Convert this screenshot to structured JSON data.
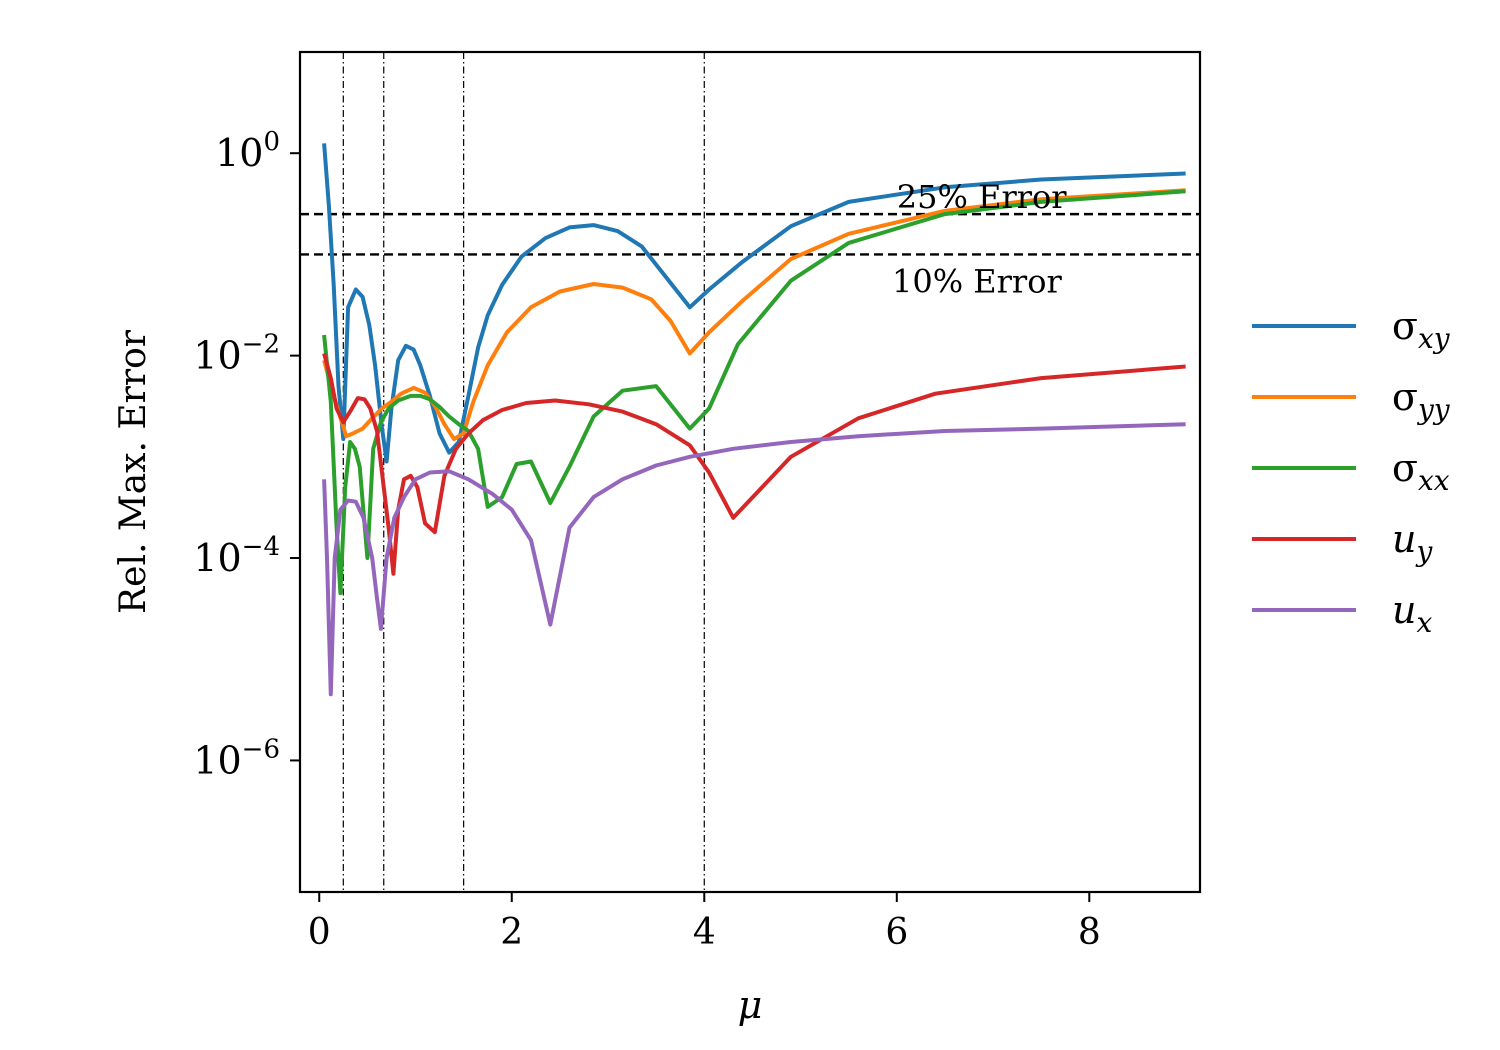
{
  "chart_data": {
    "type": "line",
    "xlabel": "μ",
    "ylabel": "Rel. Max. Error",
    "xlim": [
      -0.2,
      9.15
    ],
    "ylim_log10": [
      -7.3,
      1.0
    ],
    "y_scale": "log",
    "xticks": [
      {
        "value": 0,
        "label": "0"
      },
      {
        "value": 2,
        "label": "2"
      },
      {
        "value": 4,
        "label": "4"
      },
      {
        "value": 6,
        "label": "6"
      },
      {
        "value": 8,
        "label": "8"
      }
    ],
    "yticks": [
      {
        "value": 0,
        "base": "10",
        "exp": "0"
      },
      {
        "value": -2,
        "base": "10",
        "exp": "−2"
      },
      {
        "value": -4,
        "base": "10",
        "exp": "−4"
      },
      {
        "value": -6,
        "base": "10",
        "exp": "−6"
      }
    ],
    "vlines": [
      0.25,
      0.67,
      1.5,
      4.0
    ],
    "hlines": [
      {
        "y": 0.25,
        "label": "25% Error",
        "label_x": 6.0
      },
      {
        "y": 0.1,
        "label": "10% Error",
        "label_x": 5.95
      }
    ],
    "legend_position": "right",
    "series": [
      {
        "name": "σ",
        "sub": "xy",
        "color": "#1f77b4",
        "points": [
          [
            0.05,
            1.25
          ],
          [
            0.1,
            0.3
          ],
          [
            0.15,
            0.05
          ],
          [
            0.2,
            0.005
          ],
          [
            0.25,
            0.0015
          ],
          [
            0.3,
            0.03
          ],
          [
            0.38,
            0.045
          ],
          [
            0.45,
            0.038
          ],
          [
            0.52,
            0.02
          ],
          [
            0.58,
            0.008
          ],
          [
            0.65,
            0.002
          ],
          [
            0.7,
            0.0009
          ],
          [
            0.75,
            0.003
          ],
          [
            0.82,
            0.009
          ],
          [
            0.9,
            0.0125
          ],
          [
            0.98,
            0.0115
          ],
          [
            1.05,
            0.008
          ],
          [
            1.15,
            0.004
          ],
          [
            1.25,
            0.0017
          ],
          [
            1.35,
            0.0011
          ],
          [
            1.45,
            0.0014
          ],
          [
            1.55,
            0.004
          ],
          [
            1.65,
            0.012
          ],
          [
            1.75,
            0.025
          ],
          [
            1.9,
            0.05
          ],
          [
            2.1,
            0.095
          ],
          [
            2.35,
            0.145
          ],
          [
            2.6,
            0.185
          ],
          [
            2.85,
            0.195
          ],
          [
            3.1,
            0.17
          ],
          [
            3.35,
            0.12
          ],
          [
            3.6,
            0.06
          ],
          [
            3.85,
            0.03
          ],
          [
            4.05,
            0.045
          ],
          [
            4.4,
            0.085
          ],
          [
            4.9,
            0.19
          ],
          [
            5.5,
            0.33
          ],
          [
            6.5,
            0.46
          ],
          [
            7.5,
            0.55
          ],
          [
            9.0,
            0.63
          ]
        ]
      },
      {
        "name": "σ",
        "sub": "yy",
        "color": "#ff7f0e",
        "points": [
          [
            0.05,
            0.009
          ],
          [
            0.1,
            0.006
          ],
          [
            0.15,
            0.004
          ],
          [
            0.2,
            0.0028
          ],
          [
            0.28,
            0.0016
          ],
          [
            0.35,
            0.0017
          ],
          [
            0.45,
            0.0019
          ],
          [
            0.55,
            0.0024
          ],
          [
            0.65,
            0.003
          ],
          [
            0.75,
            0.0035
          ],
          [
            0.85,
            0.0042
          ],
          [
            0.98,
            0.0048
          ],
          [
            1.1,
            0.0043
          ],
          [
            1.2,
            0.0032
          ],
          [
            1.3,
            0.0021
          ],
          [
            1.4,
            0.0015
          ],
          [
            1.5,
            0.0017
          ],
          [
            1.6,
            0.0035
          ],
          [
            1.75,
            0.008
          ],
          [
            1.95,
            0.017
          ],
          [
            2.2,
            0.03
          ],
          [
            2.5,
            0.043
          ],
          [
            2.85,
            0.051
          ],
          [
            3.15,
            0.047
          ],
          [
            3.45,
            0.036
          ],
          [
            3.65,
            0.022
          ],
          [
            3.85,
            0.0105
          ],
          [
            4.05,
            0.017
          ],
          [
            4.4,
            0.035
          ],
          [
            4.9,
            0.09
          ],
          [
            5.5,
            0.16
          ],
          [
            6.5,
            0.27
          ],
          [
            7.5,
            0.35
          ],
          [
            9.0,
            0.43
          ]
        ]
      },
      {
        "name": "σ",
        "sub": "xx",
        "color": "#2ca02c",
        "points": [
          [
            0.05,
            0.016
          ],
          [
            0.12,
            0.0035
          ],
          [
            0.18,
            0.0002
          ],
          [
            0.22,
            4.5e-05
          ],
          [
            0.27,
            0.0005
          ],
          [
            0.32,
            0.0014
          ],
          [
            0.37,
            0.0012
          ],
          [
            0.42,
            0.0008
          ],
          [
            0.5,
            0.0001
          ],
          [
            0.56,
            0.0012
          ],
          [
            0.64,
            0.0022
          ],
          [
            0.72,
            0.003
          ],
          [
            0.82,
            0.0036
          ],
          [
            0.95,
            0.004
          ],
          [
            1.05,
            0.004
          ],
          [
            1.15,
            0.0037
          ],
          [
            1.25,
            0.0031
          ],
          [
            1.35,
            0.0025
          ],
          [
            1.45,
            0.0021
          ],
          [
            1.55,
            0.0018
          ],
          [
            1.65,
            0.0012
          ],
          [
            1.75,
            0.00032
          ],
          [
            1.9,
            0.0004
          ],
          [
            2.05,
            0.00085
          ],
          [
            2.2,
            0.0009
          ],
          [
            2.4,
            0.00035
          ],
          [
            2.6,
            0.0008
          ],
          [
            2.85,
            0.0025
          ],
          [
            3.15,
            0.0045
          ],
          [
            3.5,
            0.005
          ],
          [
            3.85,
            0.0019
          ],
          [
            4.05,
            0.003
          ],
          [
            4.35,
            0.013
          ],
          [
            4.9,
            0.055
          ],
          [
            5.5,
            0.13
          ],
          [
            6.5,
            0.25
          ],
          [
            7.5,
            0.33
          ],
          [
            9.0,
            0.42
          ]
        ]
      },
      {
        "name": "u",
        "sub": "y",
        "color": "#d62728",
        "points": [
          [
            0.05,
            0.0105
          ],
          [
            0.12,
            0.006
          ],
          [
            0.18,
            0.003
          ],
          [
            0.25,
            0.0022
          ],
          [
            0.32,
            0.0028
          ],
          [
            0.4,
            0.0038
          ],
          [
            0.47,
            0.0037
          ],
          [
            0.53,
            0.003
          ],
          [
            0.6,
            0.0018
          ],
          [
            0.66,
            0.0006
          ],
          [
            0.72,
            0.0002
          ],
          [
            0.77,
            7e-05
          ],
          [
            0.82,
            0.0003
          ],
          [
            0.88,
            0.0006
          ],
          [
            0.95,
            0.00065
          ],
          [
            1.02,
            0.0005
          ],
          [
            1.1,
            0.00022
          ],
          [
            1.2,
            0.00018
          ],
          [
            1.3,
            0.00065
          ],
          [
            1.42,
            0.0012
          ],
          [
            1.55,
            0.0017
          ],
          [
            1.7,
            0.0023
          ],
          [
            1.9,
            0.0029
          ],
          [
            2.15,
            0.0034
          ],
          [
            2.45,
            0.0036
          ],
          [
            2.8,
            0.0033
          ],
          [
            3.15,
            0.0028
          ],
          [
            3.5,
            0.0021
          ],
          [
            3.85,
            0.0013
          ],
          [
            4.05,
            0.0007
          ],
          [
            4.3,
            0.00025
          ],
          [
            4.9,
            0.001
          ],
          [
            5.6,
            0.0024
          ],
          [
            6.4,
            0.0042
          ],
          [
            7.5,
            0.006
          ],
          [
            9.0,
            0.0078
          ]
        ]
      },
      {
        "name": "u",
        "sub": "x",
        "color": "#9467bd",
        "points": [
          [
            0.05,
            0.0006
          ],
          [
            0.08,
            0.0001
          ],
          [
            0.12,
            4.5e-06
          ],
          [
            0.16,
            0.0001
          ],
          [
            0.22,
            0.0003
          ],
          [
            0.3,
            0.00037
          ],
          [
            0.38,
            0.00036
          ],
          [
            0.46,
            0.00025
          ],
          [
            0.55,
            0.0001
          ],
          [
            0.6,
            4e-05
          ],
          [
            0.64,
            2e-05
          ],
          [
            0.7,
            0.0001
          ],
          [
            0.78,
            0.00025
          ],
          [
            0.88,
            0.0004
          ],
          [
            1.0,
            0.0006
          ],
          [
            1.15,
            0.0007
          ],
          [
            1.35,
            0.00072
          ],
          [
            1.55,
            0.0006
          ],
          [
            1.8,
            0.00043
          ],
          [
            2.0,
            0.0003
          ],
          [
            2.2,
            0.00015
          ],
          [
            2.4,
            2.2e-05
          ],
          [
            2.6,
            0.0002
          ],
          [
            2.85,
            0.0004
          ],
          [
            3.15,
            0.0006
          ],
          [
            3.5,
            0.00082
          ],
          [
            3.85,
            0.001
          ],
          [
            4.3,
            0.0012
          ],
          [
            4.9,
            0.0014
          ],
          [
            5.6,
            0.0016
          ],
          [
            6.5,
            0.0018
          ],
          [
            7.5,
            0.0019
          ],
          [
            9.0,
            0.0021
          ]
        ]
      }
    ]
  }
}
